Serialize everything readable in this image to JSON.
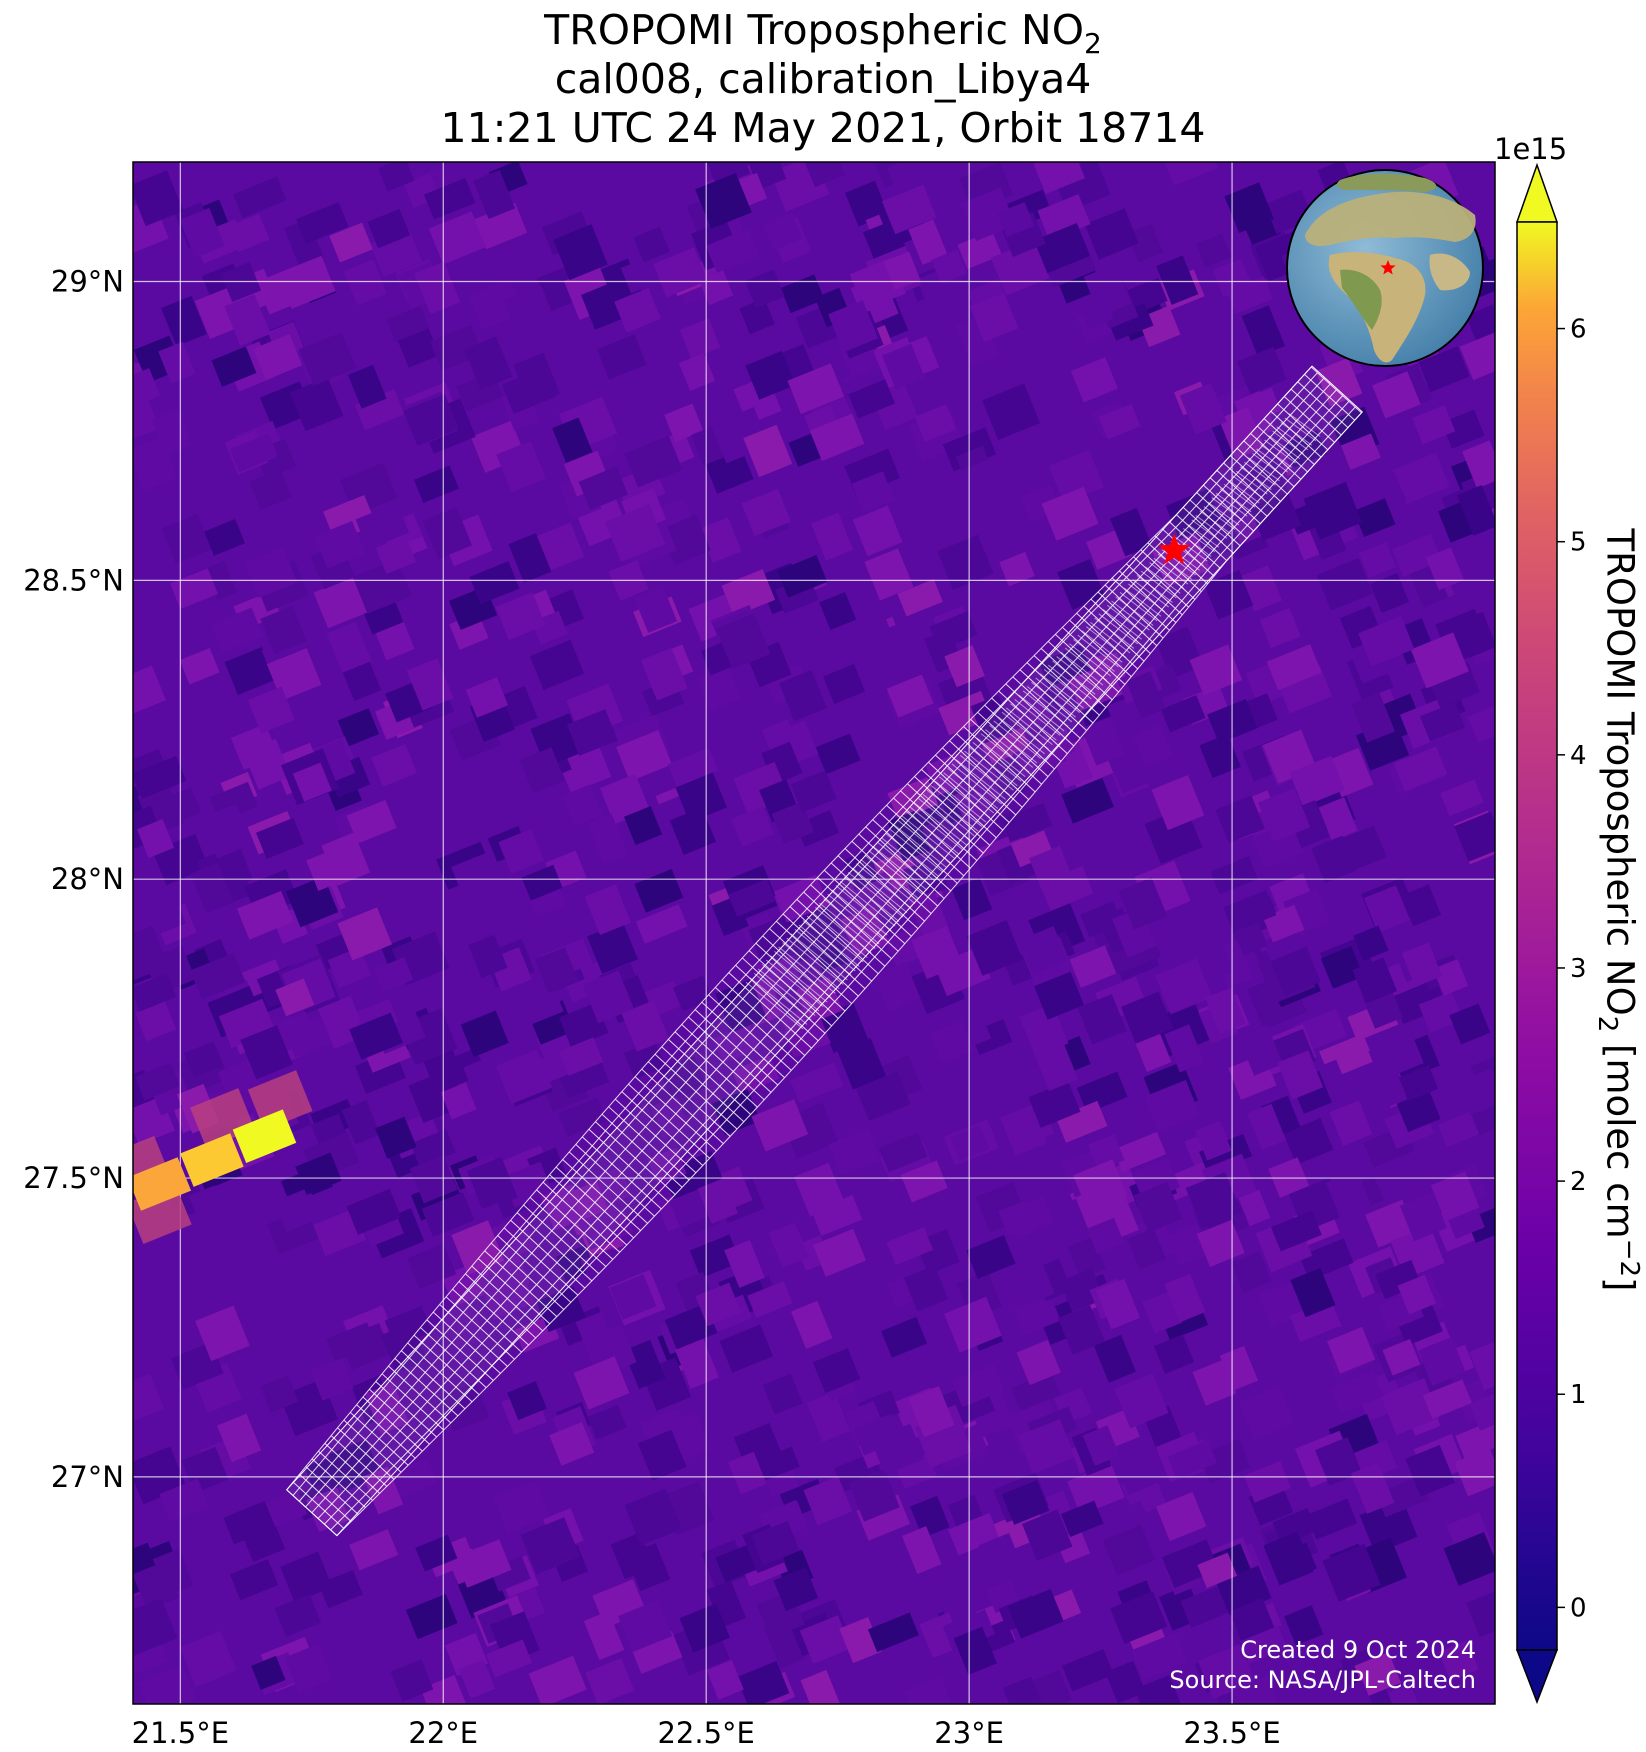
{
  "title": {
    "line1_prefix": "TROPOMI Tropospheric NO",
    "line1_sub": "2",
    "line2": "cal008, calibration_Libya4",
    "line3": "11:21 UTC 24 May 2021, Orbit 18714"
  },
  "map": {
    "lon_range": [
      21.41,
      24.0
    ],
    "lat_range": [
      26.62,
      29.2
    ],
    "grid": true,
    "x_ticks": [
      {
        "value": 21.5,
        "label": "21.5°E"
      },
      {
        "value": 22.0,
        "label": "22°E"
      },
      {
        "value": 22.5,
        "label": "22.5°E"
      },
      {
        "value": 23.0,
        "label": "23°E"
      },
      {
        "value": 23.5,
        "label": "23.5°E"
      }
    ],
    "y_ticks": [
      {
        "value": 29.0,
        "label": "29°N"
      },
      {
        "value": 28.5,
        "label": "28.5°N"
      },
      {
        "value": 28.0,
        "label": "28°N"
      },
      {
        "value": 27.5,
        "label": "27.5°N"
      },
      {
        "value": 27.0,
        "label": "27°N"
      }
    ],
    "background_color": "#5a0aa0",
    "site": {
      "name": "calibration_Libya4",
      "lon": 23.39,
      "lat": 28.55,
      "marker": "red-star-icon",
      "color": "#ff0000"
    },
    "hotspot": {
      "cells": [
        {
          "lon": 21.46,
          "lat": 27.49,
          "value": 5.0
        },
        {
          "lon": 21.56,
          "lat": 27.53,
          "value": 5.7
        },
        {
          "lon": 21.66,
          "lat": 27.57,
          "value": 6.3
        }
      ]
    },
    "footprint_swath": {
      "color": "#ffffff",
      "start": {
        "lon": 21.75,
        "lat": 26.94
      },
      "end": {
        "lon": 23.7,
        "lat": 28.82
      }
    },
    "inset_globe": {
      "marker": "red-star-icon",
      "region": "North Africa"
    }
  },
  "colorbar": {
    "label_prefix": "TROPOMI Tropospheric NO",
    "label_sub": "2",
    "label_mid": " [molec cm",
    "label_sup": "−2",
    "label_suffix": "]",
    "exponent": "1e15",
    "min": -0.2,
    "max": 6.5,
    "ticks": [
      "0",
      "1",
      "2",
      "3",
      "4",
      "5",
      "6"
    ],
    "colormap": "plasma",
    "extend": "both"
  },
  "credits": {
    "line1": "Created 9 Oct 2024",
    "line2": "Source: NASA/JPL-Caltech"
  }
}
